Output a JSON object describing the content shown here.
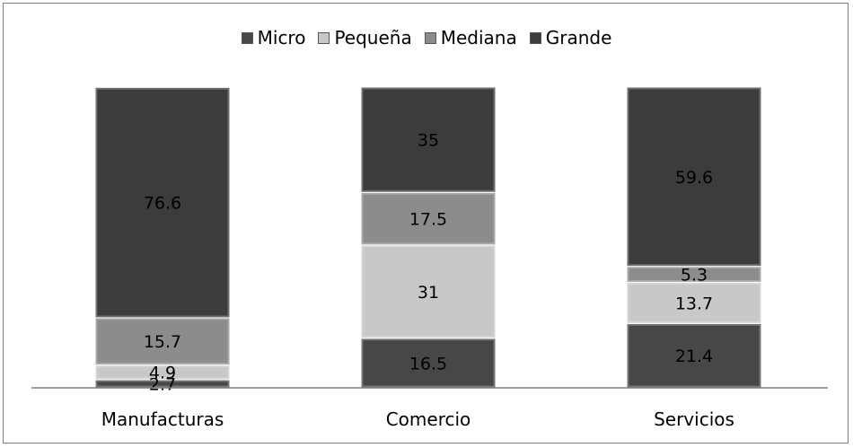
{
  "chart_data": {
    "type": "bar",
    "stacked": true,
    "categories": [
      "Manufacturas",
      "Comercio",
      "Servicios"
    ],
    "series": [
      {
        "name": "Micro",
        "color": "#474747",
        "values": [
          2.7,
          16.5,
          21.4
        ],
        "labels": [
          "2.7",
          "16.5",
          "21.4"
        ]
      },
      {
        "name": "Pequeña",
        "color": "#c8c8c8",
        "values": [
          4.9,
          31,
          13.7
        ],
        "labels": [
          "4.9",
          "31",
          "13.7"
        ]
      },
      {
        "name": "Mediana",
        "color": "#8c8c8c",
        "values": [
          15.7,
          17.5,
          5.3
        ],
        "labels": [
          "15.7",
          "17.5",
          "5.3"
        ]
      },
      {
        "name": "Grande",
        "color": "#3c3c3c",
        "values": [
          76.6,
          35,
          59.6
        ],
        "labels": [
          "76.6",
          "35",
          "59.6"
        ]
      }
    ],
    "ylim": [
      0,
      100
    ],
    "grid": false,
    "legend_position": "top"
  }
}
